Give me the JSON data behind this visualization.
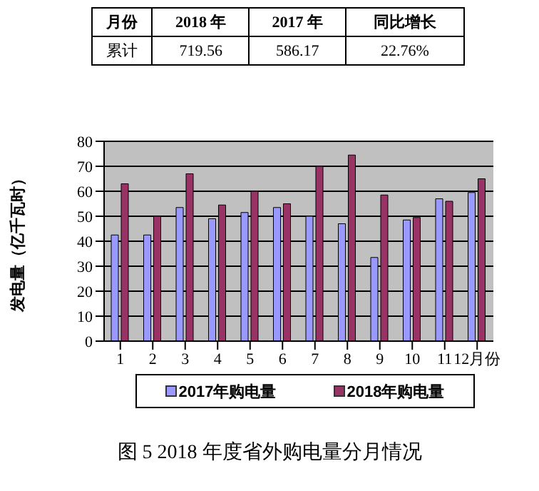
{
  "chart_data": {
    "type": "bar",
    "title": "图 5 2018 年度省外购电量分月情况",
    "annotations": [
      "月份",
      "2018 年",
      "2017 年",
      "同比增长",
      "累计",
      "719.56",
      "586.17",
      "22.76%"
    ],
    "categories": [
      "1",
      "2",
      "3",
      "4",
      "5",
      "6",
      "7",
      "8",
      "9",
      "10",
      "11",
      "12月份"
    ],
    "ylabel": "发电量（亿千瓦时）",
    "series": [
      {
        "name": "2017年购电量",
        "color": "#9999ff",
        "values": [
          42.5,
          42.5,
          53.5,
          49,
          51.5,
          53.5,
          50,
          47,
          33.5,
          48.5,
          57,
          59.5
        ]
      },
      {
        "name": "2018年购电量",
        "color": "#993366",
        "values": [
          63,
          50,
          67,
          54.5,
          60,
          55,
          70,
          74.5,
          58.5,
          49.5,
          56,
          65
        ]
      }
    ],
    "ylim": [
      0,
      80
    ],
    "yticks": [
      0,
      10,
      20,
      30,
      40,
      50,
      60,
      70,
      80
    ],
    "grid": "y",
    "legend": "bottom"
  }
}
